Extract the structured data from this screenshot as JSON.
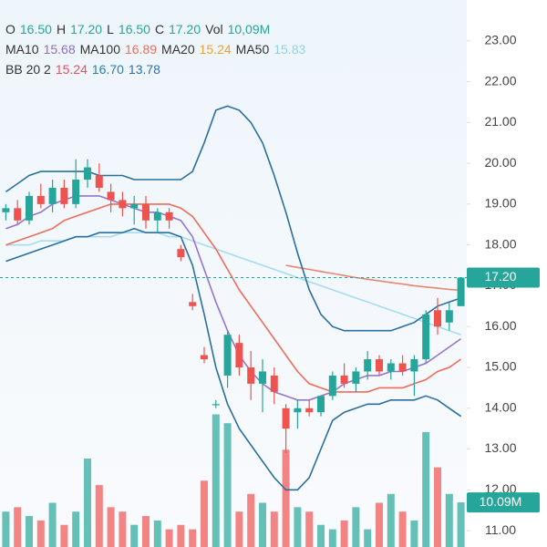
{
  "chart_data": {
    "type": "candlestick",
    "header": [
      [
        {
          "text": "O",
          "color": "#333333"
        },
        {
          "text": "16.50",
          "color": "#26a69a"
        },
        {
          "text": "H",
          "color": "#333333"
        },
        {
          "text": "17.20",
          "color": "#26a69a"
        },
        {
          "text": "L",
          "color": "#333333"
        },
        {
          "text": "16.50",
          "color": "#26a69a"
        },
        {
          "text": "C",
          "color": "#333333"
        },
        {
          "text": "17.20",
          "color": "#26a69a"
        },
        {
          "text": "Vol",
          "color": "#333333"
        },
        {
          "text": "10,09M",
          "color": "#26a69a"
        }
      ],
      [
        {
          "text": "MA10",
          "color": "#333333"
        },
        {
          "text": "15.68",
          "color": "#8e6fc0"
        },
        {
          "text": "MA100",
          "color": "#333333"
        },
        {
          "text": "16.89",
          "color": "#e8705f"
        },
        {
          "text": "MA20",
          "color": "#333333"
        },
        {
          "text": "15.24",
          "color": "#f0a030"
        },
        {
          "text": "MA50",
          "color": "#333333"
        },
        {
          "text": "15.83",
          "color": "#8fd3f0"
        }
      ],
      [
        {
          "text": "BB 20 2",
          "color": "#333333"
        },
        {
          "text": "15.24",
          "color": "#e8505b"
        },
        {
          "text": "16.70",
          "color": "#2a7fa8"
        },
        {
          "text": "13.78",
          "color": "#2a6fb0"
        }
      ]
    ],
    "open": [
      18.8,
      18.9,
      18.6,
      19.2,
      19.0,
      19.4,
      19.0,
      19.6,
      19.7,
      19.3,
      19.1,
      18.9,
      19.0,
      18.6,
      18.8,
      17.9,
      16.6,
      15.3,
      14.1,
      14.8,
      15.6,
      15.0,
      14.6,
      14.8,
      14.0,
      13.9,
      14.0,
      13.9,
      14.3,
      14.8,
      14.6,
      14.9,
      15.2,
      14.9,
      15.1,
      14.9,
      15.2,
      16.4,
      16.1,
      16.5
    ],
    "high": [
      19.0,
      19.1,
      19.3,
      19.5,
      19.6,
      19.6,
      20.1,
      20.1,
      20.0,
      19.5,
      19.3,
      19.2,
      19.2,
      18.9,
      18.9,
      18.0,
      16.8,
      15.5,
      14.2,
      15.9,
      15.8,
      15.4,
      15.2,
      15.0,
      14.1,
      14.2,
      14.2,
      14.3,
      14.9,
      15.1,
      15.0,
      15.4,
      15.3,
      15.2,
      15.3,
      15.3,
      16.4,
      16.7,
      16.6,
      17.2
    ],
    "low": [
      18.6,
      18.5,
      18.5,
      18.9,
      18.8,
      18.9,
      18.9,
      19.4,
      19.3,
      18.8,
      18.7,
      18.5,
      18.4,
      18.3,
      18.4,
      17.6,
      16.4,
      15.1,
      14.0,
      14.5,
      14.8,
      14.2,
      13.9,
      14.1,
      12.9,
      13.5,
      13.8,
      13.8,
      14.2,
      14.5,
      14.4,
      14.7,
      14.8,
      14.7,
      14.8,
      14.3,
      15.1,
      15.8,
      15.9,
      16.5
    ],
    "close": [
      18.9,
      18.6,
      19.2,
      19.0,
      19.4,
      19.0,
      19.6,
      19.9,
      19.4,
      19.1,
      18.9,
      19.0,
      18.6,
      18.8,
      18.6,
      17.7,
      16.5,
      15.2,
      14.1,
      15.8,
      15.0,
      14.6,
      14.9,
      14.4,
      13.5,
      14.0,
      13.9,
      14.3,
      14.8,
      14.6,
      14.9,
      15.2,
      14.9,
      15.1,
      14.9,
      15.2,
      16.3,
      16.0,
      16.4,
      17.2
    ],
    "volume": [
      8,
      9,
      7,
      6,
      10,
      5,
      8,
      20,
      14,
      9,
      8,
      5,
      7,
      6,
      4,
      5,
      4,
      15,
      30,
      28,
      8,
      12,
      10,
      8,
      22,
      9,
      8,
      5,
      4,
      6,
      9,
      4,
      10,
      12,
      8,
      6,
      26,
      18,
      12,
      10.09
    ],
    "up_color": "#26a69a",
    "down_color": "#ef5350",
    "series": [
      {
        "color": "#a5dcf2",
        "values": [
          18.0,
          18.0,
          18.0,
          18.1,
          18.1,
          18.1,
          18.2,
          18.2,
          18.2,
          18.2,
          18.3,
          18.3,
          18.3,
          18.3,
          18.2,
          18.2,
          18.1,
          18.0,
          17.9,
          17.8,
          17.7,
          17.6,
          17.5,
          17.4,
          17.3,
          17.2,
          17.1,
          17.0,
          16.9,
          16.8,
          16.7,
          16.6,
          16.5,
          16.4,
          16.3,
          16.2,
          16.1,
          16.0,
          15.9,
          15.8
        ]
      },
      {
        "color": "#e8866f",
        "values": [
          null,
          null,
          null,
          null,
          null,
          null,
          null,
          null,
          null,
          null,
          null,
          null,
          null,
          null,
          null,
          null,
          null,
          null,
          null,
          null,
          null,
          null,
          null,
          null,
          17.5,
          17.45,
          17.4,
          17.35,
          17.3,
          17.25,
          17.2,
          17.16,
          17.12,
          17.08,
          17.04,
          17.0,
          16.97,
          16.94,
          16.91,
          16.89
        ]
      },
      {
        "color": "#ef6c5a",
        "values": [
          18.0,
          18.1,
          18.2,
          18.3,
          18.4,
          18.6,
          18.7,
          18.8,
          18.9,
          19.0,
          19.0,
          19.0,
          19.0,
          19.0,
          19.0,
          18.9,
          18.7,
          18.3,
          17.9,
          17.4,
          16.9,
          16.5,
          16.1,
          15.7,
          15.3,
          14.9,
          14.6,
          14.5,
          14.4,
          14.4,
          14.4,
          14.4,
          14.5,
          14.5,
          14.5,
          14.6,
          14.7,
          14.9,
          15.0,
          15.2
        ]
      },
      {
        "color": "#9575cd",
        "values": [
          18.4,
          18.5,
          18.7,
          18.8,
          19.0,
          19.1,
          19.2,
          19.2,
          19.2,
          19.1,
          19.0,
          18.9,
          18.8,
          18.8,
          18.7,
          18.6,
          18.2,
          17.4,
          16.6,
          15.9,
          15.3,
          14.9,
          14.6,
          14.4,
          14.3,
          14.2,
          14.2,
          14.3,
          14.4,
          14.6,
          14.7,
          14.8,
          14.8,
          14.9,
          14.9,
          15.0,
          15.1,
          15.3,
          15.5,
          15.7
        ]
      },
      {
        "color": "#2a6f9e",
        "values": [
          19.3,
          19.5,
          19.7,
          19.8,
          19.8,
          19.8,
          19.8,
          19.8,
          19.7,
          19.7,
          19.7,
          19.6,
          19.6,
          19.6,
          19.6,
          19.6,
          19.8,
          20.5,
          21.3,
          21.4,
          21.3,
          21.0,
          20.5,
          19.7,
          18.8,
          17.8,
          16.9,
          16.3,
          16.0,
          15.9,
          15.9,
          15.9,
          15.9,
          15.9,
          16.0,
          16.1,
          16.3,
          16.5,
          16.6,
          16.7
        ]
      },
      {
        "color": "#2a6f9e",
        "values": [
          17.6,
          17.7,
          17.8,
          17.9,
          18.0,
          18.1,
          18.2,
          18.2,
          18.3,
          18.3,
          18.3,
          18.4,
          18.3,
          18.3,
          18.3,
          18.2,
          17.5,
          16.3,
          15.0,
          14.1,
          13.5,
          13.1,
          12.7,
          12.3,
          12.0,
          12.0,
          12.3,
          13.0,
          13.7,
          13.9,
          14.0,
          14.1,
          14.1,
          14.2,
          14.2,
          14.2,
          14.3,
          14.2,
          14.0,
          13.8
        ]
      }
    ],
    "ylim": [
      10.6,
      24.0
    ],
    "yticks": [
      {
        "value": 11,
        "label": "11.00"
      },
      {
        "value": 12,
        "label": "12.00"
      },
      {
        "value": 13,
        "label": "13.00"
      },
      {
        "value": 14,
        "label": "14.00"
      },
      {
        "value": 15,
        "label": "15.00"
      },
      {
        "value": 16,
        "label": "16.00"
      },
      {
        "value": 17,
        "label": "17.00"
      },
      {
        "value": 18,
        "label": "18.00"
      },
      {
        "value": 19,
        "label": "19.00"
      },
      {
        "value": 20,
        "label": "20.00"
      },
      {
        "value": 21,
        "label": "21.00"
      },
      {
        "value": 22,
        "label": "22.00"
      },
      {
        "value": 23,
        "label": "23.00"
      }
    ],
    "vol_lim": [
      0,
      40
    ],
    "last_price": {
      "value": 17.2,
      "label": "17.20"
    },
    "last_volume": {
      "value": 10.09,
      "label": "10.09M"
    }
  }
}
